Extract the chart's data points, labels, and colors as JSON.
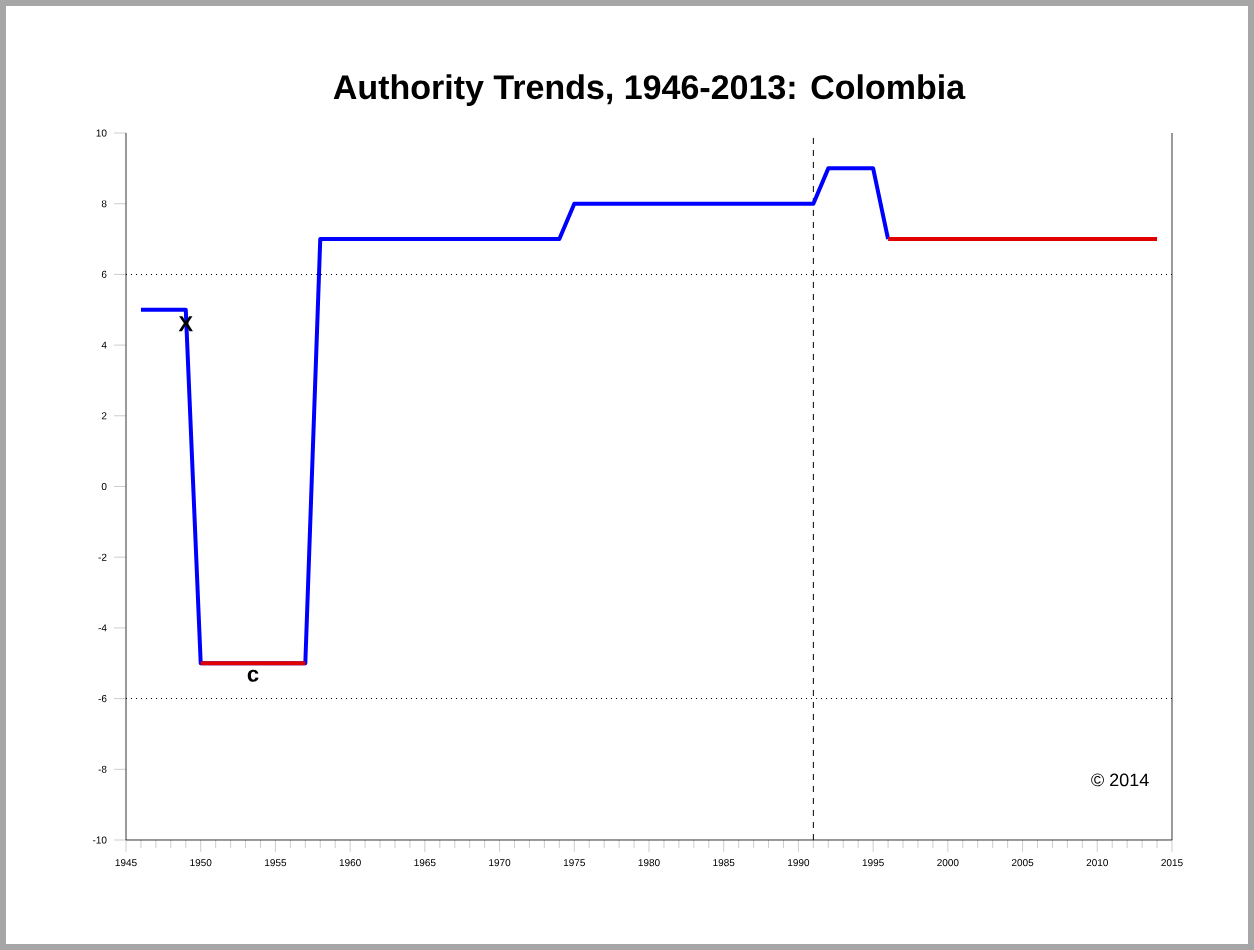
{
  "chart_data": {
    "type": "line",
    "title": "Authority Trends, 1946-2013: Colombia",
    "xlim": [
      1945,
      2015
    ],
    "xticks": [
      1945,
      1950,
      1955,
      1960,
      1965,
      1970,
      1975,
      1980,
      1985,
      1990,
      1995,
      2000,
      2005,
      2010,
      2015
    ],
    "ylim": [
      -10,
      10
    ],
    "yticks": [
      -10,
      -8,
      -6,
      -4,
      -2,
      0,
      2,
      4,
      6,
      8,
      10
    ],
    "grid": false,
    "marker": "none",
    "line_style": "solid",
    "series": [
      {
        "color": "#0000ff",
        "x": [
          1946,
          1949,
          1950,
          1957,
          1958,
          1974,
          1975,
          1991,
          1992,
          1995,
          1996
        ],
        "values": [
          5,
          5,
          -5,
          -5,
          7,
          7,
          8,
          8,
          9,
          9,
          7
        ]
      },
      {
        "color": "#e00000",
        "x": [
          1950,
          1957
        ],
        "values": [
          -5,
          -5
        ]
      },
      {
        "color": "#e00000",
        "x": [
          1996,
          2014
        ],
        "values": [
          7,
          7
        ]
      }
    ],
    "ref_lines": [
      {
        "axis": "y",
        "value": 6,
        "line_style": "dotted",
        "color": "#000000"
      },
      {
        "axis": "y",
        "value": -6,
        "line_style": "dotted",
        "color": "#000000"
      },
      {
        "axis": "x",
        "value": 1991,
        "line_style": "dashed",
        "color": "#000000"
      }
    ],
    "annotations": [
      {
        "text": "X",
        "x": 1949,
        "y": 5
      },
      {
        "text": "c",
        "x": 1953.5,
        "y": -5
      },
      "© 2014"
    ]
  }
}
